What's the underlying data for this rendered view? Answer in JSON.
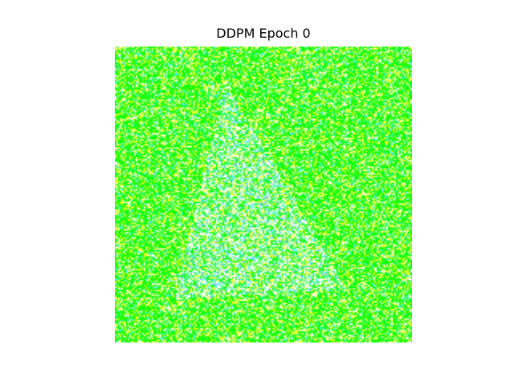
{
  "figure": {
    "title": "DDPM Epoch 0"
  },
  "image": {
    "description_type": "noisy-generated-sample",
    "dominant_colors": [
      "#00ff00",
      "#ffff00",
      "#ffffff",
      "#66ffcc",
      "#66aaff"
    ]
  }
}
